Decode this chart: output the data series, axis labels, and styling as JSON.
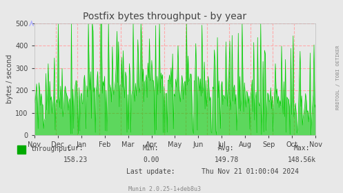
{
  "title": "Postfix bytes throughput - by year",
  "ylabel": "bytes / second",
  "bg_color": "#e8e8e8",
  "plot_bg_color": "#e8e8e8",
  "grid_color": "#ffaaaa",
  "line_color": "#00cc00",
  "fill_color": "#00cc00",
  "ylim": [
    0,
    500
  ],
  "yticks": [
    0,
    100,
    200,
    300,
    400,
    500
  ],
  "month_labels": [
    "Nov",
    "Dec",
    "Jan",
    "Feb",
    "Mar",
    "Apr",
    "May",
    "Jun",
    "Jul",
    "Aug",
    "Sep",
    "Oct",
    "Nov"
  ],
  "legend_label": "throughput",
  "legend_color": "#00aa00",
  "cur": "158.23",
  "min": "0.00",
  "avg": "149.78",
  "max": "148.56k",
  "last_update": "Thu Nov 21 01:00:04 2024",
  "footer": "Munin 2.0.25-1+deb8u3",
  "right_label": "RRDTOOL / TOBI OETIKER",
  "seed": 42,
  "n_points": 365
}
